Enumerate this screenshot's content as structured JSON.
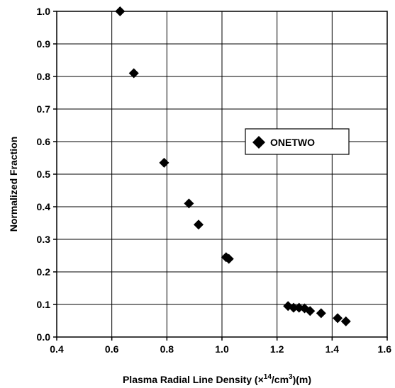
{
  "chart_data": {
    "type": "scatter",
    "title": "",
    "xlabel": "Plasma Radial Line Density (×",
    "xlabel_sup1": "14",
    "xlabel_mid": "/cm",
    "xlabel_sup2": "3",
    "xlabel_end": ")(m)",
    "ylabel": "Normalized Fraction",
    "xlim": [
      0.4,
      1.6
    ],
    "ylim": [
      0.0,
      1.0
    ],
    "xticks": [
      "0.4",
      "0.6",
      "0.8",
      "1.0",
      "1.2",
      "1.4",
      "1.6"
    ],
    "yticks": [
      "0.0",
      "0.1",
      "0.2",
      "0.3",
      "0.4",
      "0.5",
      "0.6",
      "0.7",
      "0.8",
      "0.9",
      "1.0"
    ],
    "grid": true,
    "legend_position": "center-right",
    "series": [
      {
        "name": "ONETWO",
        "marker": "diamond",
        "color": "#000000",
        "points": [
          {
            "x": 0.63,
            "y": 1.0
          },
          {
            "x": 0.68,
            "y": 0.81
          },
          {
            "x": 0.79,
            "y": 0.535
          },
          {
            "x": 0.88,
            "y": 0.41
          },
          {
            "x": 0.915,
            "y": 0.345
          },
          {
            "x": 1.015,
            "y": 0.245
          },
          {
            "x": 1.025,
            "y": 0.24
          },
          {
            "x": 1.24,
            "y": 0.095
          },
          {
            "x": 1.26,
            "y": 0.09
          },
          {
            "x": 1.28,
            "y": 0.09
          },
          {
            "x": 1.3,
            "y": 0.088
          },
          {
            "x": 1.32,
            "y": 0.08
          },
          {
            "x": 1.36,
            "y": 0.073
          },
          {
            "x": 1.42,
            "y": 0.058
          },
          {
            "x": 1.45,
            "y": 0.048
          }
        ]
      }
    ]
  }
}
